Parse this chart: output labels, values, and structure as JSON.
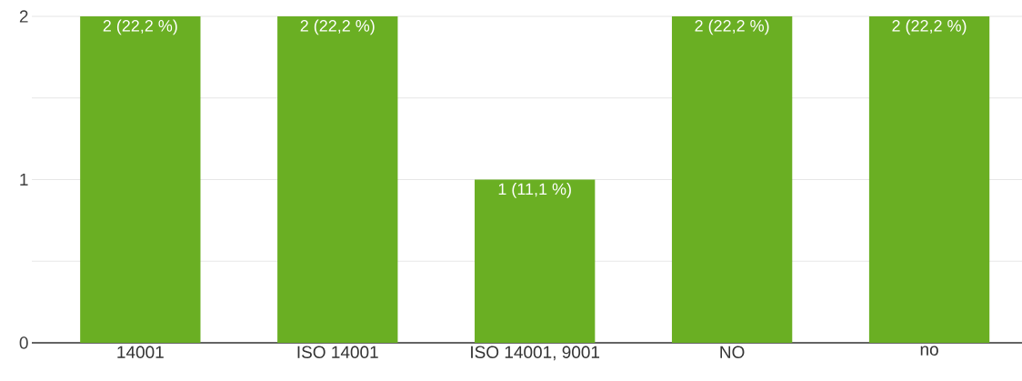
{
  "chart_data": {
    "type": "bar",
    "categories": [
      "14001",
      "ISO 14001",
      "ISO 14001, 9001",
      "NO",
      "no"
    ],
    "values": [
      2,
      2,
      1,
      2,
      2
    ],
    "value_labels": [
      "2 (22,2 %)",
      "2 (22,2 %)",
      "1 (11,1 %)",
      "2 (22,2 %)",
      "2 (22,2 %)"
    ],
    "color": "#6aaf23",
    "ylim": [
      0,
      2
    ],
    "yticks": [
      0,
      {
        "value": 0.5,
        "label": null
      },
      1,
      {
        "value": 1.5,
        "label": null
      },
      2
    ],
    "grid": "y"
  }
}
